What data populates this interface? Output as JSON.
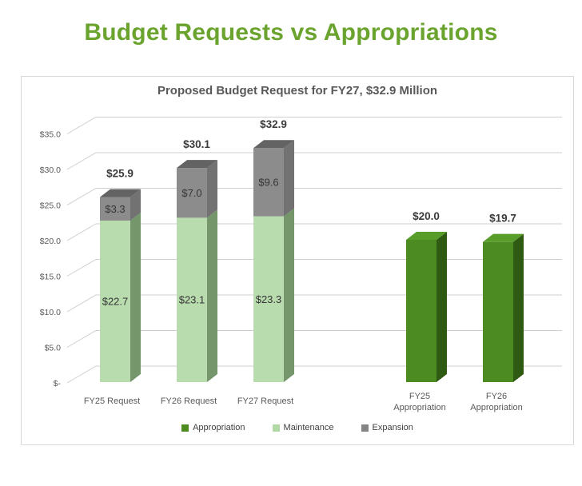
{
  "page": {
    "title": "Budget Requests vs Appropriations",
    "title_color": "#6aa32d"
  },
  "chart_data": {
    "type": "bar",
    "style": "3d-stacked-column",
    "title": "Proposed Budget Request for FY27, $32.9 Million",
    "ylim": [
      0,
      35
    ],
    "grid": true,
    "legend_position": "bottom",
    "y_ticks": [
      {
        "label": "$35.0",
        "value": 35
      },
      {
        "label": "$30.0",
        "value": 30
      },
      {
        "label": "$25.0",
        "value": 25
      },
      {
        "label": "$20.0",
        "value": 20
      },
      {
        "label": "$15.0",
        "value": 15
      },
      {
        "label": "$10.0",
        "value": 10
      },
      {
        "label": "$5.0",
        "value": 5
      },
      {
        "label": "$-",
        "value": 0
      }
    ],
    "categories": [
      {
        "lines": [
          "FY25 Request"
        ],
        "total_label": "$25.9",
        "total": 25.9
      },
      {
        "lines": [
          "FY26 Request"
        ],
        "total_label": "$30.1",
        "total": 30.1
      },
      {
        "lines": [
          "FY27 Request"
        ],
        "total_label": "$32.9",
        "total": 32.9
      },
      {
        "lines": [
          "FY25",
          "Appropriation"
        ],
        "total_label": "$20.0",
        "total": 20.0
      },
      {
        "lines": [
          "FY26",
          "Appropriation"
        ],
        "total_label": "$19.7",
        "total": 19.7
      }
    ],
    "series": [
      {
        "name": "Appropriation",
        "values": [
          null,
          null,
          null,
          20.0,
          19.7
        ],
        "labels": [
          null,
          null,
          null,
          null,
          null
        ],
        "colors": {
          "front": "#4c8b21",
          "side": "#2e5a11",
          "top": "#589c2a",
          "legend": "#4e8b21"
        }
      },
      {
        "name": "Maintenance",
        "values": [
          22.7,
          23.1,
          23.3,
          null,
          null
        ],
        "labels": [
          "$22.7",
          "$23.1",
          "$23.3",
          null,
          null
        ],
        "colors": {
          "front": "#b9dcae",
          "side": "#75966a",
          "top": "#9cc48c",
          "legend": "#b2d8a5"
        }
      },
      {
        "name": "Expansion",
        "values": [
          3.3,
          7.0,
          9.6,
          null,
          null
        ],
        "labels": [
          "$3.3",
          "$7.0",
          "$9.6",
          null,
          null
        ],
        "colors": {
          "front": "#8c8c8c",
          "side": "#727272",
          "top": "#636363",
          "legend": "#848484"
        }
      }
    ],
    "colors": {
      "grid": "#d0cece",
      "tick_label": "#595959",
      "category_label": "#595959",
      "total_label": "#3b3b3b",
      "segment_label": "#353535"
    }
  }
}
